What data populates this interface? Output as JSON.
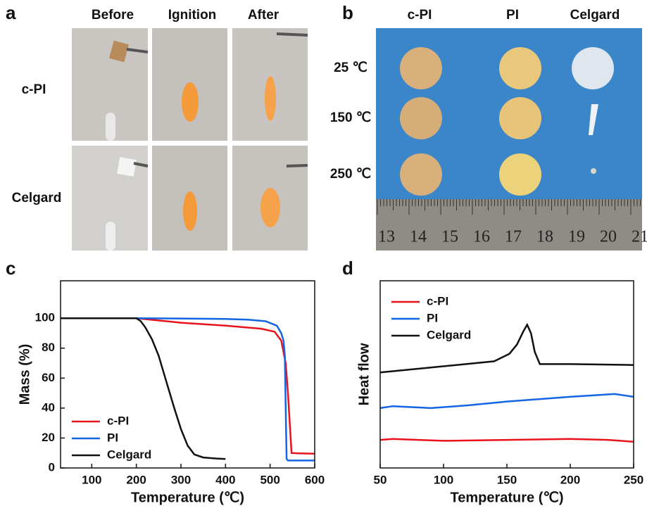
{
  "panel_a": {
    "label": "a",
    "columns": [
      "Before",
      "Ignition",
      "After"
    ],
    "rows": [
      "c-PI",
      "Celgard"
    ]
  },
  "panel_b": {
    "label": "b",
    "columns": [
      "c-PI",
      "PI",
      "Celgard"
    ],
    "rows": [
      "25 ℃",
      "150 ℃",
      "250 ℃"
    ],
    "ruler": [
      "13",
      "14",
      "15",
      "16",
      "17",
      "18",
      "19",
      "20",
      "21"
    ]
  },
  "chart_data": [
    {
      "type": "line",
      "label": "c",
      "x_label": "Temperature (℃)",
      "y_label": "Mass (%)",
      "xlim": [
        30,
        600
      ],
      "xticks": [
        100,
        200,
        300,
        400,
        500,
        600
      ],
      "ylim": [
        0,
        125
      ],
      "yticks": [
        0,
        20,
        40,
        60,
        80,
        100
      ],
      "legend": "lower left",
      "series": [
        {
          "name": "c-PI",
          "color": "#e8131b",
          "x": [
            30,
            100,
            200,
            250,
            300,
            400,
            480,
            510,
            525,
            535,
            540,
            545,
            548,
            560,
            600
          ],
          "values": [
            100,
            100,
            100,
            98.5,
            97,
            95,
            93,
            91,
            85,
            70,
            50,
            25,
            10,
            9.8,
            9.5
          ]
        },
        {
          "name": "PI",
          "color": "#1464e6",
          "x": [
            30,
            100,
            200,
            300,
            400,
            450,
            490,
            515,
            525,
            530,
            533,
            535,
            537,
            540,
            600
          ],
          "values": [
            100,
            100,
            100,
            99.8,
            99.5,
            99,
            98,
            95,
            90,
            85,
            75,
            40,
            6,
            5,
            5
          ]
        },
        {
          "name": "Celgard",
          "color": "#111111",
          "x": [
            30,
            100,
            200,
            210,
            220,
            235,
            250,
            265,
            285,
            300,
            315,
            330,
            350,
            380,
            400
          ],
          "values": [
            100,
            100,
            100,
            98,
            94,
            86,
            75,
            60,
            40,
            26,
            15,
            9,
            7,
            6.3,
            6
          ]
        }
      ]
    },
    {
      "type": "line",
      "label": "d",
      "x_label": "Temperature (℃)",
      "y_label": "Heat flow",
      "xlim": [
        50,
        250
      ],
      "xticks": [
        50,
        100,
        150,
        200,
        250
      ],
      "ylim": [
        0,
        100
      ],
      "legend": "upper left",
      "series": [
        {
          "name": "c-PI",
          "color": "#e8131b",
          "x": [
            50,
            60,
            80,
            100,
            150,
            200,
            230,
            250
          ],
          "values": [
            15,
            15.5,
            15,
            14.5,
            15,
            15.5,
            15,
            14
          ]
        },
        {
          "name": "PI",
          "color": "#1464e6",
          "x": [
            50,
            60,
            90,
            120,
            150,
            200,
            235,
            250
          ],
          "values": [
            32,
            33,
            32,
            33.5,
            35.5,
            38,
            39.5,
            38
          ]
        },
        {
          "name": "Celgard",
          "color": "#111111",
          "x": [
            50,
            80,
            110,
            140,
            152,
            158,
            163,
            166,
            169,
            172,
            176,
            200,
            250
          ],
          "values": [
            51,
            53,
            55,
            57,
            61,
            66,
            73,
            76.5,
            72,
            62,
            55.5,
            55.5,
            55
          ]
        }
      ]
    }
  ]
}
